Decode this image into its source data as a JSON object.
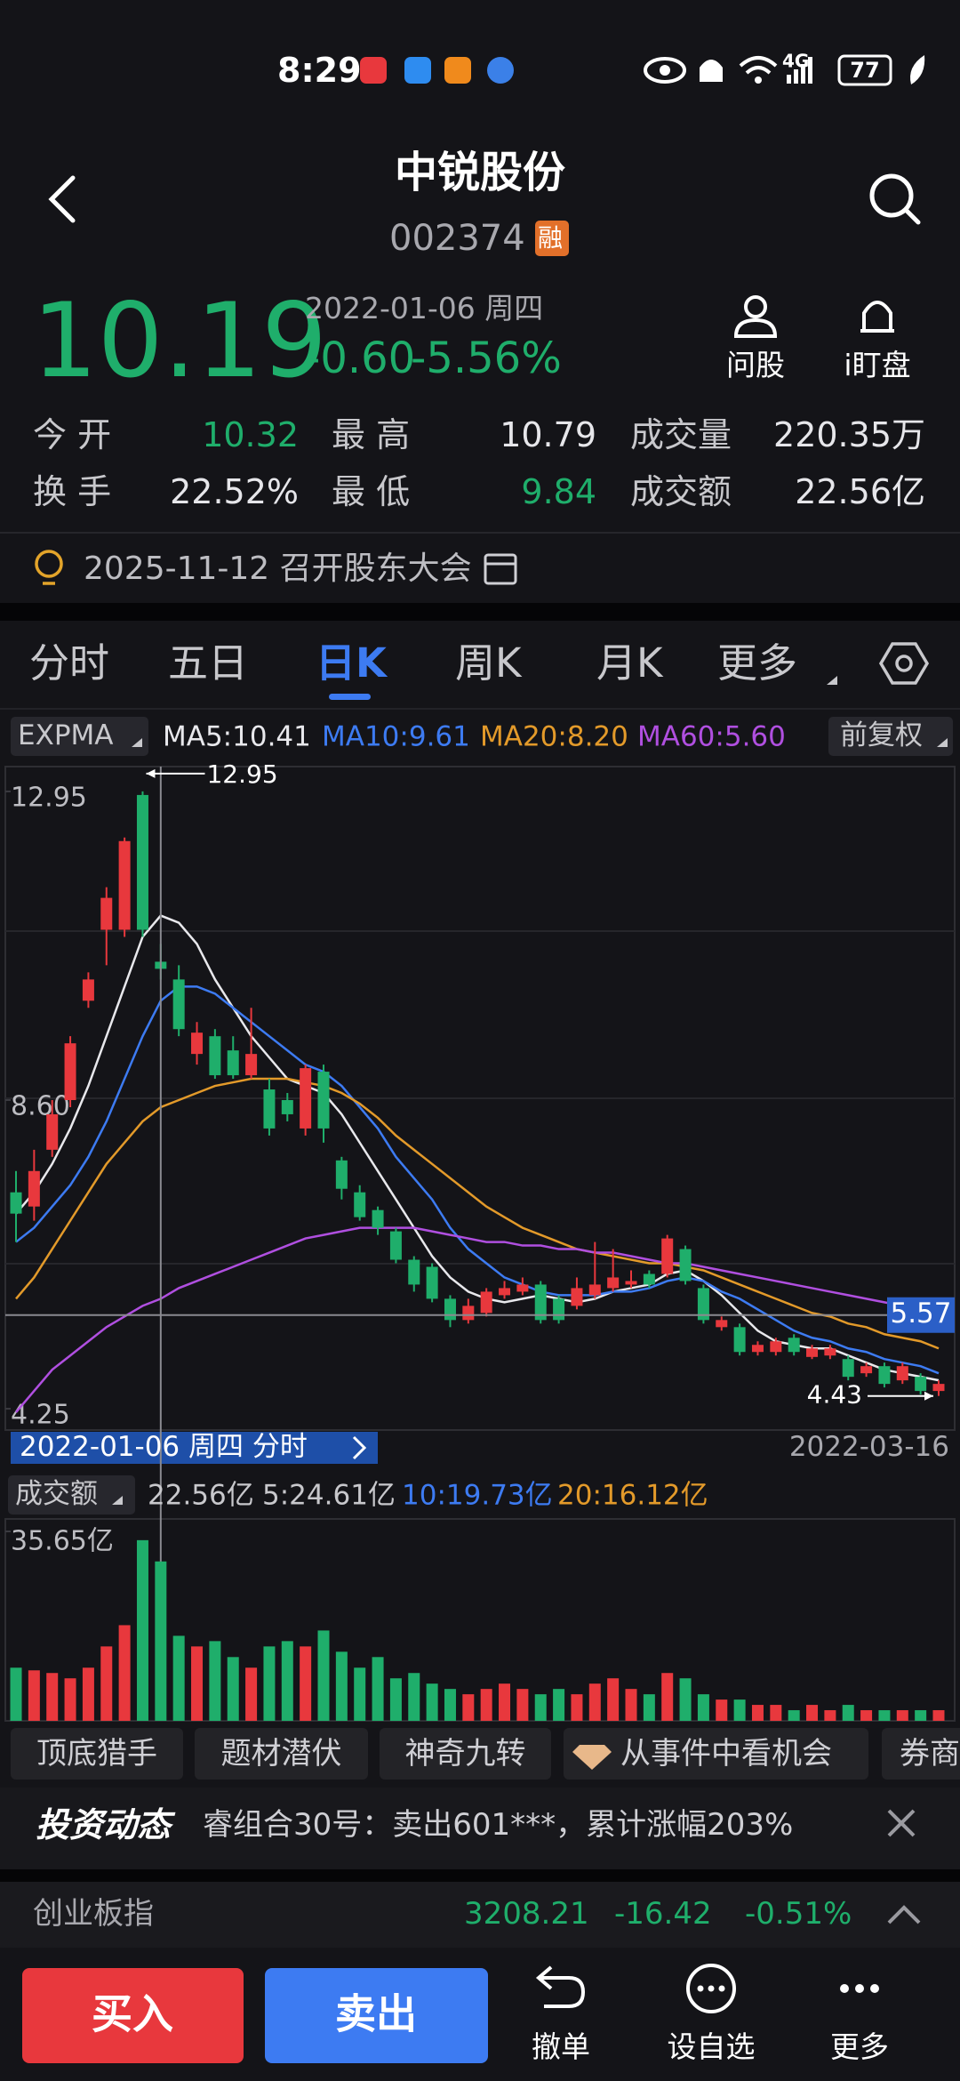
{
  "status_bar": {
    "time": "8:29",
    "network": "4G",
    "battery": "77"
  },
  "header": {
    "title": "中锐股份",
    "code": "002374",
    "badge": "融"
  },
  "quote": {
    "price": "10.19",
    "date": "2022-01-06 周四",
    "change": "-0.60",
    "change_pct": "-5.56%",
    "actions": [
      "问股",
      "i盯盘"
    ],
    "stats": [
      {
        "label": "今 开",
        "value": "10.32"
      },
      {
        "label": "最 高",
        "value": "10.79"
      },
      {
        "label": "成交量",
        "value": "220.35万"
      },
      {
        "label": "换 手",
        "value": "22.52%"
      },
      {
        "label": "最 低",
        "value": "9.84"
      },
      {
        "label": "成交额",
        "value": "22.56亿"
      }
    ]
  },
  "event": "2025-11-12 召开股东大会",
  "tabs": [
    "分时",
    "五日",
    "日K",
    "周K",
    "月K",
    "更多"
  ],
  "chart_data": [
    {
      "type": "candlestick",
      "indicator": "EXPMA",
      "adjust": "前复权",
      "cursor_label": "2022-01-06 周四 分时",
      "end_date": "2022-03-16",
      "ylim": [
        3.95,
        13.3
      ],
      "yticks": [
        12.95,
        {
          "value": 8.6,
          "label": "8.60"
        },
        4.25
      ],
      "grid": true,
      "up_color": "#e8383d",
      "down_color": "#1fae6b",
      "high_marker": 12.95,
      "low_marker": 4.43,
      "cursor_price": 5.57,
      "open": [
        7.3,
        7.1,
        7.9,
        8.6,
        10.0,
        11.0,
        11.0,
        12.9,
        10.55,
        10.3,
        9.25,
        9.5,
        9.3,
        8.95,
        8.75,
        8.6,
        8.2,
        9.0,
        7.75,
        7.3,
        7.05,
        6.75,
        6.35,
        6.25,
        5.8,
        5.5,
        5.6,
        5.85,
        5.9,
        6.0,
        5.8,
        5.7,
        5.85,
        5.95,
        6.0,
        6.15,
        6.15,
        6.5,
        5.95,
        5.4,
        5.4,
        5.05,
        5.05,
        5.25,
        4.98,
        5.0,
        4.95,
        4.75,
        4.85,
        4.65,
        4.7,
        4.5
      ],
      "close": [
        7.0,
        7.6,
        8.4,
        9.4,
        10.3,
        11.45,
        12.25,
        11.0,
        10.45,
        9.6,
        9.55,
        8.95,
        8.95,
        9.25,
        8.2,
        8.4,
        9.05,
        8.2,
        7.35,
        6.95,
        6.8,
        6.35,
        6.0,
        5.8,
        5.5,
        5.7,
        5.9,
        5.95,
        6.0,
        5.5,
        5.5,
        5.95,
        6.0,
        6.1,
        6.05,
        6.0,
        6.65,
        6.05,
        5.5,
        5.5,
        5.05,
        5.15,
        5.2,
        5.05,
        5.1,
        5.1,
        4.7,
        4.85,
        4.6,
        4.85,
        4.5,
        4.6
      ],
      "high": [
        7.6,
        7.9,
        8.6,
        9.5,
        10.4,
        11.6,
        12.3,
        12.95,
        10.8,
        10.5,
        9.7,
        9.6,
        9.5,
        9.9,
        8.9,
        8.7,
        9.1,
        9.1,
        7.8,
        7.4,
        7.1,
        6.8,
        6.4,
        6.3,
        5.85,
        5.8,
        5.95,
        6.05,
        6.1,
        6.05,
        5.85,
        6.1,
        6.6,
        6.5,
        6.2,
        6.2,
        6.7,
        6.55,
        6.0,
        5.55,
        5.45,
        5.2,
        5.25,
        5.3,
        5.15,
        5.15,
        5.0,
        4.9,
        4.9,
        4.9,
        4.75,
        4.65
      ],
      "low": [
        6.6,
        6.9,
        7.8,
        8.5,
        9.9,
        10.5,
        10.9,
        10.9,
        10.3,
        9.5,
        9.1,
        8.9,
        8.9,
        8.9,
        8.1,
        8.3,
        8.1,
        8.0,
        7.2,
        6.9,
        6.7,
        6.3,
        5.9,
        5.75,
        5.4,
        5.45,
        5.55,
        5.8,
        5.85,
        5.45,
        5.45,
        5.65,
        5.8,
        5.9,
        5.95,
        5.95,
        6.1,
        6.0,
        5.45,
        5.35,
        5.0,
        5.0,
        5.0,
        5.0,
        4.95,
        4.95,
        4.65,
        4.7,
        4.55,
        4.6,
        4.45,
        4.43
      ],
      "series": [
        {
          "name": "MA5:10.41",
          "color": "#e8e8ec",
          "values": [
            7.0,
            7.3,
            7.7,
            8.2,
            8.8,
            9.5,
            10.2,
            10.9,
            11.2,
            11.1,
            10.8,
            10.3,
            9.9,
            9.5,
            9.2,
            8.9,
            8.8,
            8.7,
            8.4,
            8.0,
            7.6,
            7.2,
            6.8,
            6.4,
            6.1,
            5.9,
            5.8,
            5.75,
            5.8,
            5.85,
            5.8,
            5.75,
            5.8,
            5.9,
            5.95,
            6.0,
            6.15,
            6.2,
            6.05,
            5.85,
            5.6,
            5.35,
            5.2,
            5.15,
            5.1,
            5.1,
            5.0,
            4.9,
            4.8,
            4.75,
            4.7,
            4.65
          ]
        },
        {
          "name": "MA10:9.61",
          "color": "#3d7bf2",
          "values": [
            6.6,
            6.8,
            7.1,
            7.4,
            7.8,
            8.3,
            8.9,
            9.5,
            10.0,
            10.2,
            10.2,
            10.1,
            9.9,
            9.7,
            9.5,
            9.3,
            9.1,
            9.0,
            8.8,
            8.5,
            8.2,
            7.8,
            7.5,
            7.2,
            6.8,
            6.5,
            6.3,
            6.1,
            6.0,
            5.9,
            5.85,
            5.85,
            5.85,
            5.9,
            5.9,
            5.95,
            6.05,
            6.1,
            6.05,
            5.9,
            5.8,
            5.65,
            5.5,
            5.35,
            5.25,
            5.2,
            5.1,
            5.05,
            4.95,
            4.9,
            4.85,
            4.75
          ]
        },
        {
          "name": "MA20:8.20",
          "color": "#e39a2a",
          "values": [
            5.8,
            6.1,
            6.5,
            6.9,
            7.3,
            7.7,
            8.0,
            8.3,
            8.5,
            8.6,
            8.7,
            8.8,
            8.85,
            8.9,
            8.9,
            8.9,
            8.85,
            8.8,
            8.7,
            8.55,
            8.35,
            8.1,
            7.9,
            7.7,
            7.5,
            7.3,
            7.1,
            6.95,
            6.8,
            6.7,
            6.6,
            6.5,
            6.45,
            6.4,
            6.35,
            6.3,
            6.3,
            6.25,
            6.2,
            6.1,
            6.0,
            5.9,
            5.8,
            5.7,
            5.6,
            5.55,
            5.45,
            5.4,
            5.3,
            5.25,
            5.2,
            5.1
          ]
        },
        {
          "name": "MA60:5.60",
          "color": "#b04fe0",
          "values": [
            4.2,
            4.5,
            4.8,
            5.0,
            5.2,
            5.4,
            5.55,
            5.7,
            5.8,
            5.95,
            6.05,
            6.15,
            6.25,
            6.35,
            6.45,
            6.55,
            6.65,
            6.7,
            6.75,
            6.8,
            6.8,
            6.8,
            6.8,
            6.75,
            6.7,
            6.65,
            6.6,
            6.6,
            6.55,
            6.55,
            6.5,
            6.5,
            6.45,
            6.45,
            6.4,
            6.35,
            6.3,
            6.3,
            6.25,
            6.2,
            6.15,
            6.1,
            6.05,
            6.0,
            5.95,
            5.9,
            5.85,
            5.8,
            5.75,
            5.7,
            5.65,
            5.6
          ]
        }
      ]
    },
    {
      "type": "bar",
      "title": "成交额",
      "ylim": [
        0,
        35.65
      ],
      "yticks": [
        {
          "value": 35.65,
          "label": "35.65亿"
        }
      ],
      "summary": [
        {
          "text": "22.56亿",
          "color": "#c8c8cc"
        },
        {
          "text": "5:24.61亿",
          "color": "#c8c8cc"
        },
        {
          "text": "10:19.73亿",
          "color": "#3d7bf2"
        },
        {
          "text": "20:16.12亿",
          "color": "#e39a2a"
        }
      ],
      "values": [
        10,
        9.5,
        9,
        8,
        10,
        14,
        18,
        34,
        30,
        16,
        14,
        15,
        12,
        10,
        14,
        15,
        14,
        17,
        13,
        10,
        12,
        8,
        9,
        7,
        6,
        5,
        6,
        7,
        6,
        5,
        6,
        5,
        7,
        8,
        6,
        5,
        9,
        8,
        5,
        4,
        4,
        3,
        3,
        2,
        3,
        2,
        3,
        2,
        2,
        2,
        2,
        2
      ]
    }
  ],
  "tools": [
    "顶底猎手",
    "题材潜伏",
    "神奇九转",
    "从事件中看机会",
    "券商"
  ],
  "news": {
    "tag": "投资动态",
    "text": "睿组合30号：卖出601***，累计涨幅203%"
  },
  "index": {
    "name": "创业板指",
    "value": "3208.21",
    "change": "-16.42",
    "change_pct": "-0.51%"
  },
  "bottom": {
    "buy": "买入",
    "sell": "卖出",
    "actions": [
      "撤单",
      "设自选",
      "更多"
    ]
  }
}
